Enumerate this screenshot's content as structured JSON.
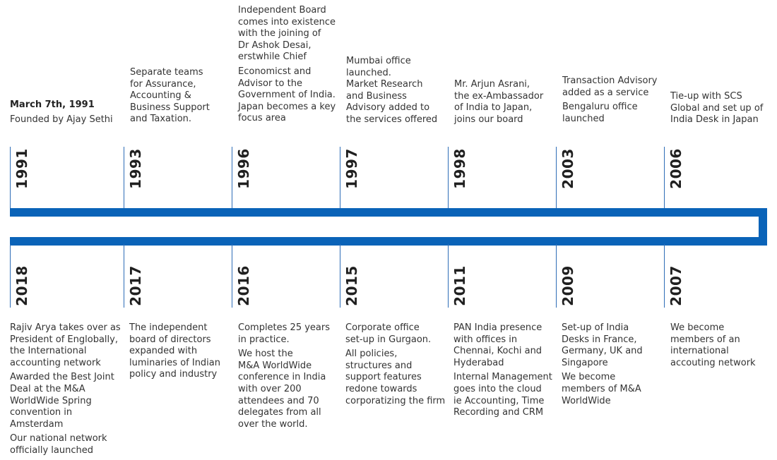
{
  "top_events": [
    {
      "year": "1991",
      "date": "March 7th, 1991",
      "lines": [
        "Founded by Ajay Sethi"
      ]
    },
    {
      "year": "1993",
      "date": "",
      "lines": [
        "Separate teams\nfor Assurance,\nAccounting &\nBusiness Support\nand Taxation."
      ]
    },
    {
      "year": "1996",
      "date": "",
      "lines": [
        "Independent Board\ncomes into existence\nwith the joining of\nDr Ashok Desai,\nerstwhile Chief",
        "Economicst and\nAdvisor to the\nGovernment of India.\nJapan becomes a key\nfocus area"
      ]
    },
    {
      "year": "1997",
      "date": "",
      "lines": [
        "Mumbai office\nlaunched.\nMarket Research\nand Business\nAdvisory added to\nthe services offered"
      ]
    },
    {
      "year": "1998",
      "date": "",
      "lines": [
        "Mr. Arjun Asrani,\nthe ex-Ambassador\nof India to Japan,\njoins our board"
      ]
    },
    {
      "year": "2003",
      "date": "",
      "lines": [
        "Transaction Advisory\nadded as a service",
        "Bengaluru office\nlaunched"
      ]
    },
    {
      "year": "2006",
      "date": "",
      "lines": [
        "Tie-up with SCS\nGlobal and set up of\nIndia Desk in Japan"
      ]
    }
  ],
  "bottom_events": [
    {
      "year": "2018",
      "lines": [
        "Rajiv Arya takes over as\nPresident of Englobally,\nthe International\naccounting network",
        "Awarded the Best Joint\nDeal at the M&A\nWorldWide Spring\nconvention in Amsterdam",
        "Our national network\nofficially launched"
      ]
    },
    {
      "year": "2017",
      "lines": [
        "The independent\nboard of directors\nexpanded with\nluminaries of Indian\npolicy and industry"
      ]
    },
    {
      "year": "2016",
      "lines": [
        "Completes 25 years\nin practice.",
        "We host the\nM&A WorldWide\nconference in India\nwith over 200\nattendees and 70\ndelegates from all\nover the world."
      ]
    },
    {
      "year": "2015",
      "lines": [
        "Corporate office\nset-up in Gurgaon.",
        "All policies,\nstructures and\nsupport features\nredone towards\ncorporatizing the firm"
      ]
    },
    {
      "year": "2011",
      "lines": [
        "PAN India presence\nwith offices in\nChennai, Kochi and\nHyderabad",
        "Internal Management\ngoes into the cloud\nie Accounting, Time\nRecording and CRM"
      ]
    },
    {
      "year": "2009",
      "lines": [
        "Set-up of India\nDesks in France,\nGermany, UK and\nSingapore",
        "We become\nmembers of M&A\nWorldWide"
      ]
    },
    {
      "year": "2007",
      "lines": [
        "We become\nmembers of an\ninternational\naccouting network"
      ]
    }
  ],
  "colors": {
    "band": "#0a63b8",
    "divider": "#2e6db7"
  }
}
